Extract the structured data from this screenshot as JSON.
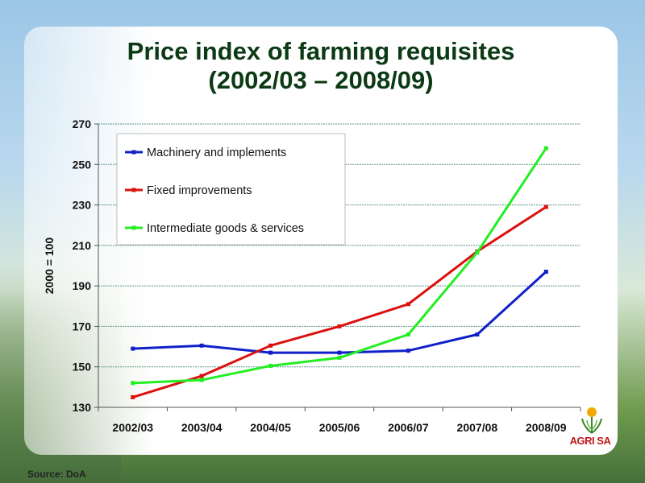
{
  "source_note": "Source:  DoA",
  "logo_text": "AGRI SA",
  "chart_data": {
    "type": "line",
    "title": "Price index of farming requisites",
    "subtitle": "(2002/03 – 2008/09)",
    "ylabel": "2000 = 100",
    "xlabel": "",
    "ylim": [
      130,
      270
    ],
    "yticks": [
      130,
      150,
      170,
      190,
      210,
      230,
      250,
      270
    ],
    "categories": [
      "2002/03",
      "2003/04",
      "2004/05",
      "2005/06",
      "2006/07",
      "2007/08",
      "2008/09"
    ],
    "grid": true,
    "legend_position": "top-left",
    "series": [
      {
        "name": "Machinery and implements",
        "color": "#1020c8",
        "values": [
          159,
          160.5,
          157,
          157,
          158,
          166,
          197
        ]
      },
      {
        "name": "Fixed improvements",
        "color": "#dd1010",
        "values": [
          135,
          145.5,
          160.5,
          170,
          181,
          207,
          229
        ]
      },
      {
        "name": "Intermediate goods & services",
        "color": "#22ee22",
        "values": [
          142,
          143.5,
          150.5,
          154.5,
          166,
          206.5,
          258
        ]
      }
    ]
  }
}
